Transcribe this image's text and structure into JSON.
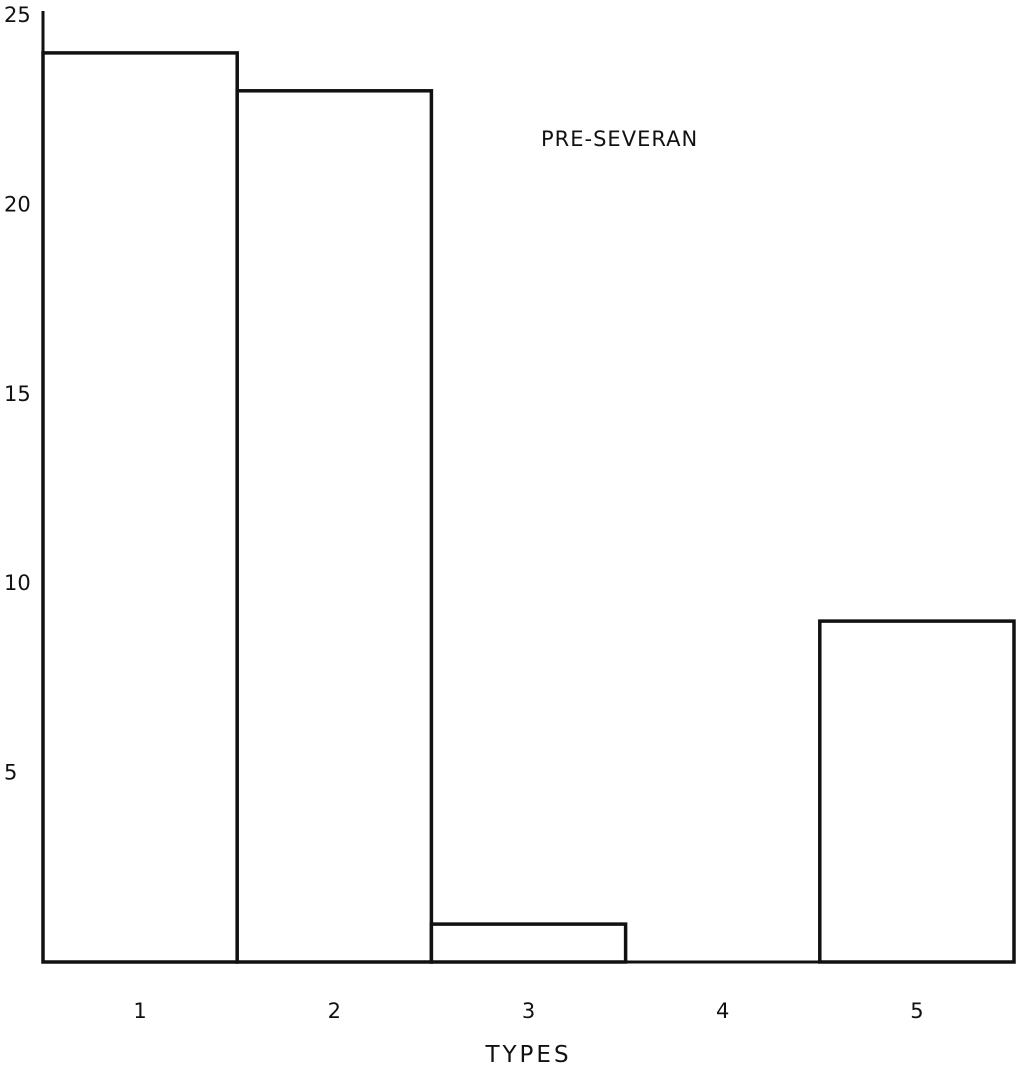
{
  "chart_data": {
    "type": "bar",
    "categories": [
      "1",
      "2",
      "3",
      "4",
      "5"
    ],
    "values": [
      24,
      23,
      1,
      0,
      9
    ],
    "title": "",
    "annotation": "PRE-SEVERAN",
    "xlabel": "TYPES",
    "ylabel": "",
    "ylim": [
      0,
      25
    ],
    "yticks": [
      "5",
      "10",
      "15",
      "20",
      "25"
    ],
    "grid": false,
    "legend": "none",
    "bar_fill": "#ffffff",
    "bar_stroke": "#111111"
  }
}
